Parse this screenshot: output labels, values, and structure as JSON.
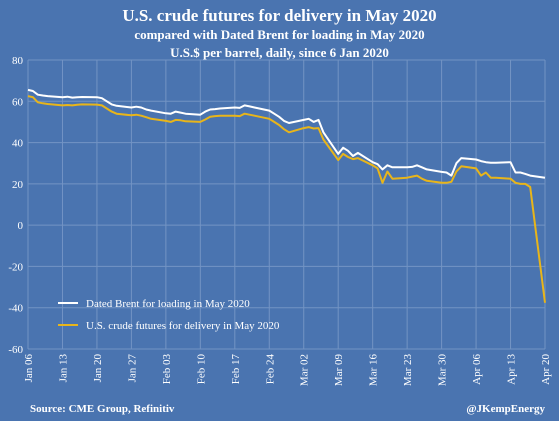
{
  "header": {
    "title": "U.S. crude futures for delivery in May 2020",
    "subtitle1": "compared with Dated Brent for loading in May 2020",
    "subtitle2": "U.S.$ per barrel, daily, since 6 Jan 2020"
  },
  "footer": {
    "source": "Source: CME Group, Refinitiv",
    "handle": "@JKempEnergy"
  },
  "colors": {
    "background": "#4a74b0",
    "brent": "#ffffff",
    "wti": "#e8b51a",
    "grid": "#7394c4"
  },
  "chart_data": {
    "type": "line",
    "title": "U.S. crude futures for delivery in May 2020",
    "ylim": [
      -60,
      80
    ],
    "yticks": [
      80,
      60,
      40,
      20,
      0,
      -20,
      -40,
      -60
    ],
    "xlim": [
      "2020-01-06",
      "2020-04-20"
    ],
    "xticks": [
      "2020-01-06",
      "2020-01-13",
      "2020-01-20",
      "2020-01-27",
      "2020-02-03",
      "2020-02-10",
      "2020-02-17",
      "2020-02-24",
      "2020-03-02",
      "2020-03-09",
      "2020-03-16",
      "2020-03-23",
      "2020-03-30",
      "2020-04-06",
      "2020-04-13",
      "2020-04-20"
    ],
    "xtick_labels": [
      "Jan 06",
      "Jan 13",
      "Jan 20",
      "Jan 27",
      "Feb 03",
      "Feb 10",
      "Feb 17",
      "Feb 24",
      "Mar 02",
      "Mar 09",
      "Mar 16",
      "Mar 23",
      "Mar 30",
      "Apr 06",
      "Apr 13",
      "Apr 20"
    ],
    "grid": true,
    "legend_position": "bottom-left",
    "series": [
      {
        "name": "Dated Brent for loading in May 2020",
        "color": "#ffffff",
        "points": [
          [
            "2020-01-06",
            65.5
          ],
          [
            "2020-01-07",
            65.0
          ],
          [
            "2020-01-08",
            63.2
          ],
          [
            "2020-01-09",
            62.8
          ],
          [
            "2020-01-10",
            62.5
          ],
          [
            "2020-01-13",
            62.0
          ],
          [
            "2020-01-14",
            62.2
          ],
          [
            "2020-01-15",
            61.8
          ],
          [
            "2020-01-16",
            62.0
          ],
          [
            "2020-01-17",
            62.1
          ],
          [
            "2020-01-20",
            62.0
          ],
          [
            "2020-01-21",
            61.5
          ],
          [
            "2020-01-22",
            60.0
          ],
          [
            "2020-01-23",
            58.5
          ],
          [
            "2020-01-24",
            57.8
          ],
          [
            "2020-01-27",
            57.0
          ],
          [
            "2020-01-28",
            57.4
          ],
          [
            "2020-01-29",
            57.0
          ],
          [
            "2020-01-30",
            56.0
          ],
          [
            "2020-01-31",
            55.5
          ],
          [
            "2020-02-03",
            54.2
          ],
          [
            "2020-02-04",
            54.0
          ],
          [
            "2020-02-05",
            55.0
          ],
          [
            "2020-02-06",
            54.5
          ],
          [
            "2020-02-07",
            54.0
          ],
          [
            "2020-02-10",
            53.5
          ],
          [
            "2020-02-11",
            55.0
          ],
          [
            "2020-02-12",
            56.0
          ],
          [
            "2020-02-13",
            56.2
          ],
          [
            "2020-02-14",
            56.5
          ],
          [
            "2020-02-17",
            57.0
          ],
          [
            "2020-02-18",
            56.8
          ],
          [
            "2020-02-19",
            58.0
          ],
          [
            "2020-02-20",
            57.5
          ],
          [
            "2020-02-21",
            57.0
          ],
          [
            "2020-02-24",
            55.5
          ],
          [
            "2020-02-25",
            54.0
          ],
          [
            "2020-02-26",
            52.5
          ],
          [
            "2020-02-27",
            50.5
          ],
          [
            "2020-02-28",
            49.5
          ],
          [
            "2020-03-02",
            51.0
          ],
          [
            "2020-03-03",
            51.5
          ],
          [
            "2020-03-04",
            50.0
          ],
          [
            "2020-03-05",
            51.0
          ],
          [
            "2020-03-06",
            45.0
          ],
          [
            "2020-03-09",
            34.5
          ],
          [
            "2020-03-10",
            37.5
          ],
          [
            "2020-03-11",
            36.0
          ],
          [
            "2020-03-12",
            33.5
          ],
          [
            "2020-03-13",
            35.0
          ],
          [
            "2020-03-16",
            30.5
          ],
          [
            "2020-03-17",
            29.5
          ],
          [
            "2020-03-18",
            27.0
          ],
          [
            "2020-03-19",
            29.0
          ],
          [
            "2020-03-20",
            28.0
          ],
          [
            "2020-03-23",
            28.0
          ],
          [
            "2020-03-24",
            28.2
          ],
          [
            "2020-03-25",
            29.0
          ],
          [
            "2020-03-26",
            28.0
          ],
          [
            "2020-03-27",
            27.0
          ],
          [
            "2020-03-30",
            25.8
          ],
          [
            "2020-03-31",
            25.5
          ],
          [
            "2020-04-01",
            24.0
          ],
          [
            "2020-04-02",
            30.0
          ],
          [
            "2020-04-03",
            32.5
          ],
          [
            "2020-04-06",
            31.8
          ],
          [
            "2020-04-07",
            31.0
          ],
          [
            "2020-04-08",
            30.5
          ],
          [
            "2020-04-09",
            30.2
          ],
          [
            "2020-04-10",
            30.2
          ],
          [
            "2020-04-13",
            30.5
          ],
          [
            "2020-04-14",
            25.5
          ],
          [
            "2020-04-15",
            25.5
          ],
          [
            "2020-04-16",
            24.8
          ],
          [
            "2020-04-17",
            24.0
          ],
          [
            "2020-04-20",
            23.0
          ]
        ]
      },
      {
        "name": "U.S. crude futures for delivery in May 2020",
        "color": "#e8b51a",
        "points": [
          [
            "2020-01-06",
            62.5
          ],
          [
            "2020-01-07",
            62.0
          ],
          [
            "2020-01-08",
            59.5
          ],
          [
            "2020-01-09",
            59.0
          ],
          [
            "2020-01-10",
            58.7
          ],
          [
            "2020-01-13",
            58.0
          ],
          [
            "2020-01-14",
            58.2
          ],
          [
            "2020-01-15",
            58.0
          ],
          [
            "2020-01-16",
            58.3
          ],
          [
            "2020-01-17",
            58.5
          ],
          [
            "2020-01-20",
            58.4
          ],
          [
            "2020-01-21",
            58.0
          ],
          [
            "2020-01-22",
            56.5
          ],
          [
            "2020-01-23",
            55.0
          ],
          [
            "2020-01-24",
            54.0
          ],
          [
            "2020-01-27",
            53.2
          ],
          [
            "2020-01-28",
            53.5
          ],
          [
            "2020-01-29",
            53.0
          ],
          [
            "2020-01-30",
            52.3
          ],
          [
            "2020-01-31",
            51.5
          ],
          [
            "2020-02-03",
            50.5
          ],
          [
            "2020-02-04",
            50.0
          ],
          [
            "2020-02-05",
            51.0
          ],
          [
            "2020-02-06",
            50.8
          ],
          [
            "2020-02-07",
            50.3
          ],
          [
            "2020-02-10",
            50.0
          ],
          [
            "2020-02-11",
            51.2
          ],
          [
            "2020-02-12",
            52.5
          ],
          [
            "2020-02-13",
            52.8
          ],
          [
            "2020-02-14",
            53.0
          ],
          [
            "2020-02-17",
            53.0
          ],
          [
            "2020-02-18",
            52.8
          ],
          [
            "2020-02-19",
            54.0
          ],
          [
            "2020-02-20",
            53.5
          ],
          [
            "2020-02-21",
            53.0
          ],
          [
            "2020-02-24",
            51.5
          ],
          [
            "2020-02-25",
            50.0
          ],
          [
            "2020-02-26",
            48.5
          ],
          [
            "2020-02-27",
            46.5
          ],
          [
            "2020-02-28",
            45.0
          ],
          [
            "2020-03-02",
            47.0
          ],
          [
            "2020-03-03",
            47.5
          ],
          [
            "2020-03-04",
            46.8
          ],
          [
            "2020-03-05",
            47.0
          ],
          [
            "2020-03-06",
            41.5
          ],
          [
            "2020-03-09",
            31.5
          ],
          [
            "2020-03-10",
            34.5
          ],
          [
            "2020-03-11",
            33.0
          ],
          [
            "2020-03-12",
            32.0
          ],
          [
            "2020-03-13",
            32.5
          ],
          [
            "2020-03-16",
            29.0
          ],
          [
            "2020-03-17",
            27.5
          ],
          [
            "2020-03-18",
            20.5
          ],
          [
            "2020-03-19",
            26.0
          ],
          [
            "2020-03-20",
            22.5
          ],
          [
            "2020-03-23",
            23.0
          ],
          [
            "2020-03-24",
            23.5
          ],
          [
            "2020-03-25",
            24.0
          ],
          [
            "2020-03-26",
            22.5
          ],
          [
            "2020-03-27",
            21.5
          ],
          [
            "2020-03-30",
            20.5
          ],
          [
            "2020-03-31",
            20.5
          ],
          [
            "2020-04-01",
            21.0
          ],
          [
            "2020-04-02",
            26.0
          ],
          [
            "2020-04-03",
            28.5
          ],
          [
            "2020-04-06",
            27.5
          ],
          [
            "2020-04-07",
            24.0
          ],
          [
            "2020-04-08",
            25.5
          ],
          [
            "2020-04-09",
            23.0
          ],
          [
            "2020-04-10",
            23.0
          ],
          [
            "2020-04-13",
            22.5
          ],
          [
            "2020-04-14",
            20.5
          ],
          [
            "2020-04-15",
            20.0
          ],
          [
            "2020-04-16",
            20.0
          ],
          [
            "2020-04-17",
            18.5
          ],
          [
            "2020-04-20",
            -37.6
          ]
        ]
      }
    ]
  }
}
